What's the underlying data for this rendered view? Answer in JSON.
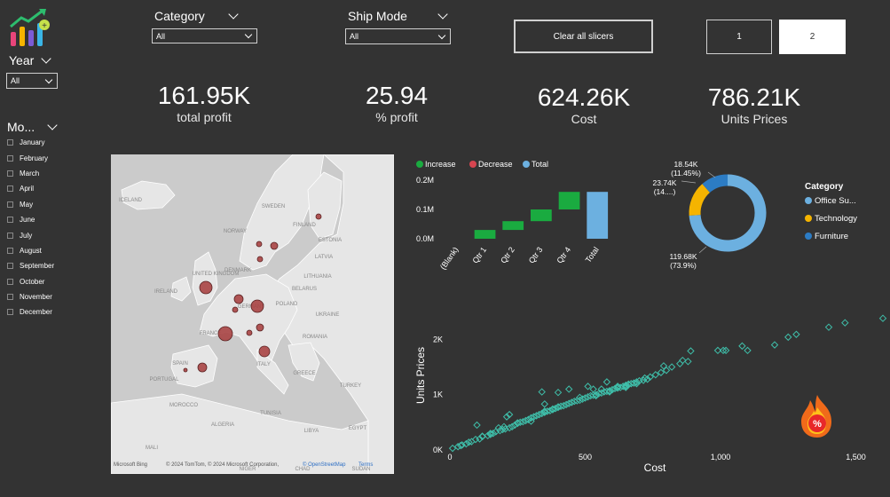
{
  "filters": {
    "year": {
      "title": "Year",
      "value": "All"
    },
    "category": {
      "title": "Category",
      "value": "All"
    },
    "ship_mode": {
      "title": "Ship Mode",
      "value": "All"
    },
    "month": {
      "title": "Mo...",
      "items": [
        "January",
        "February",
        "March",
        "April",
        "May",
        "June",
        "July",
        "August",
        "September",
        "October",
        "November",
        "December"
      ]
    }
  },
  "buttons": {
    "clear": "Clear all slicers",
    "page1": "1",
    "page2": "2"
  },
  "kpis": [
    {
      "value": "161.95K",
      "label": "total profit"
    },
    {
      "value": "25.94",
      "label": "% profit"
    },
    {
      "value": "624.26K",
      "label": "Cost"
    },
    {
      "value": "786.21K",
      "label": "Units Prices"
    }
  ],
  "map": {
    "labels": [
      "ICELAND",
      "SWEDEN",
      "NORWAY",
      "FINLAND",
      "ESTONIA",
      "LATVIA",
      "DENMARK",
      "LITHUANIA",
      "UNITED KINGDOM",
      "BELARUS",
      "IRELAND",
      "POLAND",
      "GERMANY",
      "UKRAINE",
      "FRANCE",
      "ROMANIA",
      "ITALY",
      "SPAIN",
      "PORTUGAL",
      "GREECE",
      "TURKEY",
      "MOROCCO",
      "ALGERIA",
      "TUNISIA",
      "LIBYA",
      "EGYPT",
      "MALI",
      "NIGER",
      "CHAD",
      "SUDAN"
    ],
    "attribution": "© 2024 TomTom, © 2024 Microsoft Corporation,",
    "osm": "© OpenStreetMap",
    "terms": "Terms",
    "logo": "Microsoft Bing",
    "colors": {
      "bubble": "#a94444",
      "land": "#e4e4e4",
      "water": "#c9c9c9"
    }
  },
  "chart_data": [
    {
      "type": "waterfall",
      "legend": [
        "Increase",
        "Decrease",
        "Total"
      ],
      "legend_colors": [
        "#1aab40",
        "#d64550",
        "#6cb0e0"
      ],
      "categories": [
        "(Blank)",
        "Qtr 1",
        "Qtr 2",
        "Qtr 3",
        "Qtr 4",
        "Total"
      ],
      "values": [
        0,
        0.03,
        0.03,
        0.04,
        0.06,
        0.16
      ],
      "yticks": [
        "0.0M",
        "0.1M",
        "0.2M"
      ],
      "ylim": [
        0,
        0.2
      ]
    },
    {
      "type": "pie",
      "legend_title": "Category",
      "labels": [
        "Office Su...",
        "Technology",
        "Furniture"
      ],
      "values": [
        119.68,
        23.74,
        18.54
      ],
      "data_labels": [
        [
          "119.68K",
          "(73.9%)"
        ],
        [
          "23.74K",
          "(14....)"
        ],
        [
          "18.54K",
          "(11.45%)"
        ]
      ],
      "colors": [
        "#6cb0e0",
        "#f5b400",
        "#2c7cc4"
      ]
    },
    {
      "type": "scatter",
      "xlabel": "Cost",
      "ylabel": "Units Prices",
      "xticks": [
        "0",
        "500",
        "1,000",
        "1,500"
      ],
      "yticks": [
        "0K",
        "1K",
        "2K"
      ],
      "xlim": [
        0,
        1600
      ],
      "ylim": [
        0,
        2600
      ],
      "color": "#3fbfaa",
      "points": [
        [
          10,
          30
        ],
        [
          30,
          60
        ],
        [
          45,
          90
        ],
        [
          60,
          110
        ],
        [
          80,
          150
        ],
        [
          95,
          190
        ],
        [
          110,
          200
        ],
        [
          120,
          240
        ],
        [
          140,
          260
        ],
        [
          150,
          280
        ],
        [
          160,
          300
        ],
        [
          170,
          330
        ],
        [
          185,
          350
        ],
        [
          195,
          370
        ],
        [
          205,
          380
        ],
        [
          220,
          400
        ],
        [
          230,
          420
        ],
        [
          240,
          450
        ],
        [
          250,
          480
        ],
        [
          260,
          500
        ],
        [
          270,
          510
        ],
        [
          280,
          530
        ],
        [
          290,
          550
        ],
        [
          300,
          580
        ],
        [
          310,
          600
        ],
        [
          320,
          620
        ],
        [
          330,
          640
        ],
        [
          340,
          660
        ],
        [
          350,
          680
        ],
        [
          360,
          700
        ],
        [
          370,
          710
        ],
        [
          380,
          730
        ],
        [
          390,
          750
        ],
        [
          400,
          770
        ],
        [
          410,
          790
        ],
        [
          420,
          800
        ],
        [
          430,
          820
        ],
        [
          440,
          840
        ],
        [
          450,
          860
        ],
        [
          460,
          880
        ],
        [
          470,
          890
        ],
        [
          480,
          900
        ],
        [
          490,
          920
        ],
        [
          500,
          940
        ],
        [
          510,
          960
        ],
        [
          520,
          980
        ],
        [
          530,
          990
        ],
        [
          540,
          1000
        ],
        [
          550,
          1020
        ],
        [
          560,
          1030
        ],
        [
          570,
          1050
        ],
        [
          580,
          1060
        ],
        [
          590,
          1070
        ],
        [
          600,
          1090
        ],
        [
          610,
          1110
        ],
        [
          620,
          1120
        ],
        [
          630,
          1130
        ],
        [
          640,
          1150
        ],
        [
          650,
          1170
        ],
        [
          660,
          1190
        ],
        [
          670,
          1200
        ],
        [
          680,
          1210
        ],
        [
          690,
          1230
        ],
        [
          700,
          1250
        ],
        [
          720,
          1300
        ],
        [
          740,
          1320
        ],
        [
          760,
          1360
        ],
        [
          780,
          1400
        ],
        [
          800,
          1440
        ],
        [
          820,
          1500
        ],
        [
          850,
          1560
        ],
        [
          880,
          1600
        ],
        [
          100,
          450
        ],
        [
          210,
          600
        ],
        [
          340,
          1050
        ],
        [
          440,
          1100
        ],
        [
          180,
          400
        ],
        [
          620,
          1150
        ],
        [
          560,
          1100
        ],
        [
          300,
          520
        ],
        [
          480,
          950
        ],
        [
          530,
          1100
        ],
        [
          510,
          1150
        ],
        [
          650,
          1130
        ],
        [
          540,
          980
        ],
        [
          715,
          1260
        ],
        [
          690,
          1200
        ],
        [
          660,
          1180
        ],
        [
          590,
          1070
        ],
        [
          620,
          1140
        ],
        [
          400,
          780
        ],
        [
          380,
          740
        ],
        [
          350,
          700
        ],
        [
          250,
          490
        ],
        [
          200,
          420
        ],
        [
          150,
          300
        ],
        [
          120,
          250
        ],
        [
          70,
          140
        ],
        [
          40,
          80
        ],
        [
          590,
          1050
        ],
        [
          650,
          1150
        ],
        [
          730,
          1280
        ],
        [
          790,
          1520
        ],
        [
          860,
          1620
        ],
        [
          890,
          1790
        ],
        [
          990,
          1800
        ],
        [
          1010,
          1800
        ],
        [
          1080,
          1880
        ],
        [
          1100,
          1800
        ],
        [
          1020,
          1800
        ],
        [
          1200,
          1900
        ],
        [
          1250,
          2040
        ],
        [
          1280,
          2090
        ],
        [
          1400,
          2220
        ],
        [
          1460,
          2300
        ],
        [
          1600,
          2380
        ],
        [
          400,
          1040
        ],
        [
          350,
          830
        ],
        [
          220,
          640
        ],
        [
          580,
          1230
        ]
      ]
    }
  ]
}
